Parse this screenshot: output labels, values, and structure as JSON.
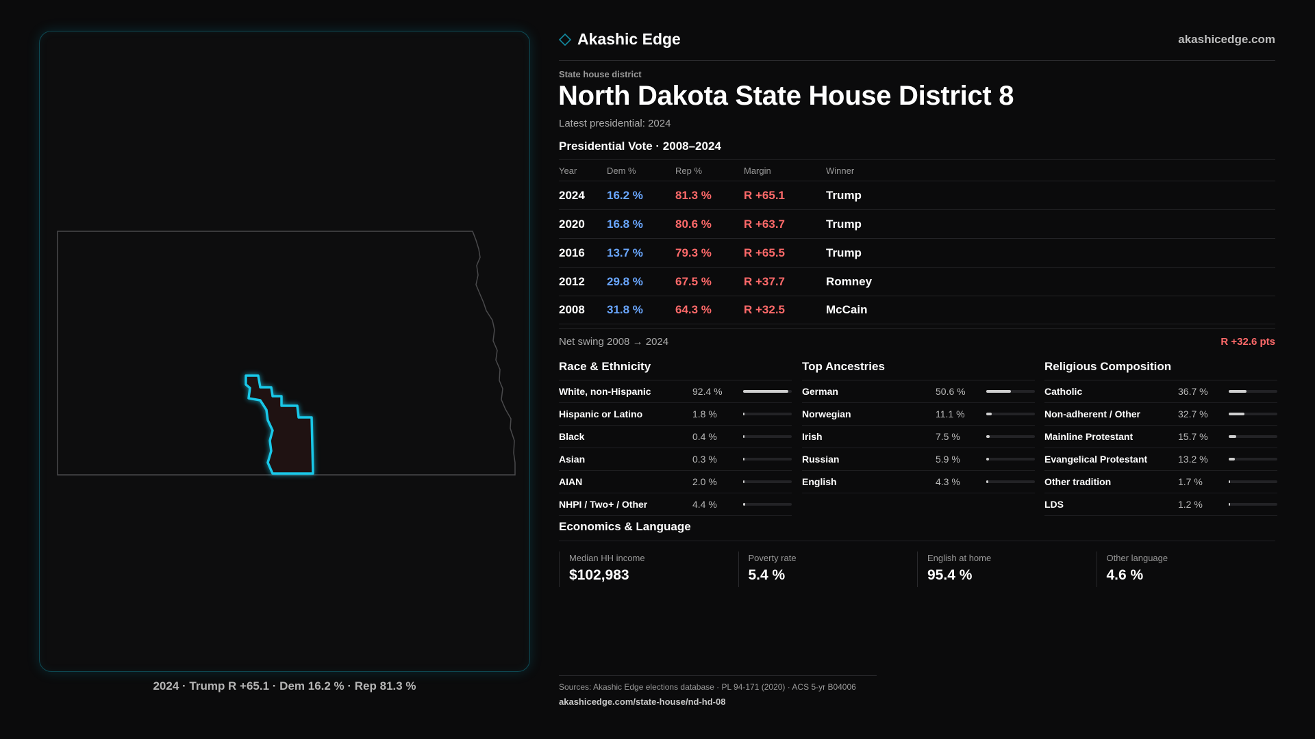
{
  "brand": {
    "name": "Akashic Edge",
    "url": "akashicedge.com",
    "icon": "diamond-icon"
  },
  "kicker": "State house district",
  "title": "North Dakota State House District 8",
  "latest": "Latest presidential: 2024",
  "vote": {
    "title": "Presidential Vote · 2008–2024",
    "headers": {
      "year": "Year",
      "dem": "Dem %",
      "rep": "Rep %",
      "margin": "Margin",
      "winner": "Winner"
    },
    "rows": [
      {
        "year": "2024",
        "dem": "16.2 %",
        "rep": "81.3 %",
        "margin": "R +65.1",
        "winner": "Trump"
      },
      {
        "year": "2020",
        "dem": "16.8 %",
        "rep": "80.6 %",
        "margin": "R +63.7",
        "winner": "Trump"
      },
      {
        "year": "2016",
        "dem": "13.7 %",
        "rep": "79.3 %",
        "margin": "R +65.5",
        "winner": "Trump"
      },
      {
        "year": "2012",
        "dem": "29.8 %",
        "rep": "67.5 %",
        "margin": "R +37.7",
        "winner": "Romney"
      },
      {
        "year": "2008",
        "dem": "31.8 %",
        "rep": "64.3 %",
        "margin": "R +32.5",
        "winner": "McCain"
      }
    ],
    "swing_label": "Net swing 2008 → 2024",
    "swing_value": "R +32.6 pts"
  },
  "race": {
    "title": "Race & Ethnicity",
    "items": [
      {
        "label": "White, non-Hispanic",
        "value": "92.4 %",
        "pct": 92.4
      },
      {
        "label": "Hispanic or Latino",
        "value": "1.8 %",
        "pct": 1.8
      },
      {
        "label": "Black",
        "value": "0.4 %",
        "pct": 0.4
      },
      {
        "label": "Asian",
        "value": "0.3 %",
        "pct": 0.3
      },
      {
        "label": "AIAN",
        "value": "2.0 %",
        "pct": 2.0
      },
      {
        "label": "NHPI / Two+ / Other",
        "value": "4.4 %",
        "pct": 4.4
      }
    ]
  },
  "ancestry": {
    "title": "Top Ancestries",
    "items": [
      {
        "label": "German",
        "value": "50.6 %",
        "pct": 50.6
      },
      {
        "label": "Norwegian",
        "value": "11.1 %",
        "pct": 11.1
      },
      {
        "label": "Irish",
        "value": "7.5 %",
        "pct": 7.5
      },
      {
        "label": "Russian",
        "value": "5.9 %",
        "pct": 5.9
      },
      {
        "label": "English",
        "value": "4.3 %",
        "pct": 4.3
      }
    ]
  },
  "religion": {
    "title": "Religious Composition",
    "items": [
      {
        "label": "Catholic",
        "value": "36.7 %",
        "pct": 36.7
      },
      {
        "label": "Non-adherent / Other",
        "value": "32.7 %",
        "pct": 32.7
      },
      {
        "label": "Mainline Protestant",
        "value": "15.7 %",
        "pct": 15.7
      },
      {
        "label": "Evangelical Protestant",
        "value": "13.2 %",
        "pct": 13.2
      },
      {
        "label": "Other tradition",
        "value": "1.7 %",
        "pct": 1.7
      },
      {
        "label": "LDS",
        "value": "1.2 %",
        "pct": 1.2
      }
    ]
  },
  "economics": {
    "title": "Economics & Language",
    "cells": [
      {
        "label": "Median HH income",
        "value": "$102,983"
      },
      {
        "label": "Poverty rate",
        "value": "5.4 %"
      },
      {
        "label": "English at home",
        "value": "95.4 %"
      },
      {
        "label": "Other language",
        "value": "4.6 %"
      }
    ]
  },
  "map": {
    "caption": "2024 · Trump R +65.1 · Dem 16.2 % · Rep 81.3 %",
    "highlight_color": "#19c8e8"
  },
  "footer": {
    "sources": "Sources: Akashic Edge elections database · PL 94-171 (2020) · ACS 5-yr B04006",
    "permalink": "akashicedge.com/state-house/nd-hd-08"
  }
}
